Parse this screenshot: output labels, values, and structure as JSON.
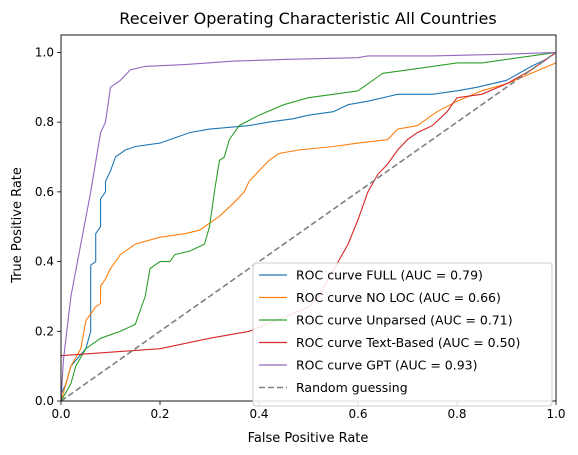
{
  "chart_data": {
    "type": "line",
    "title": "Receiver Operating Characteristic All Countries",
    "xlabel": "False Positive Rate",
    "ylabel": "True Positive Rate",
    "xlim": [
      0,
      1
    ],
    "ylim": [
      0,
      1.05
    ],
    "xticks": [
      0.0,
      0.2,
      0.4,
      0.6,
      0.8,
      1.0
    ],
    "xtick_labels": [
      "0.0",
      "0.2",
      "0.4",
      "0.6",
      "0.8",
      "1.0"
    ],
    "yticks": [
      0.0,
      0.2,
      0.4,
      0.6,
      0.8,
      1.0
    ],
    "ytick_labels": [
      "0.0",
      "0.2",
      "0.4",
      "0.6",
      "0.8",
      "1.0"
    ],
    "grid": false,
    "legend_position": "lower-right",
    "series": [
      {
        "name": "ROC curve FULL (AUC = 0.79)",
        "color": "#1f77b4",
        "style": "solid",
        "points": [
          [
            0,
            0
          ],
          [
            0,
            0.02
          ],
          [
            0.01,
            0.05
          ],
          [
            0.02,
            0.1
          ],
          [
            0.05,
            0.15
          ],
          [
            0.06,
            0.2
          ],
          [
            0.06,
            0.39
          ],
          [
            0.07,
            0.4
          ],
          [
            0.07,
            0.48
          ],
          [
            0.08,
            0.5
          ],
          [
            0.08,
            0.58
          ],
          [
            0.09,
            0.6
          ],
          [
            0.09,
            0.63
          ],
          [
            0.1,
            0.66
          ],
          [
            0.11,
            0.7
          ],
          [
            0.13,
            0.72
          ],
          [
            0.15,
            0.73
          ],
          [
            0.2,
            0.74
          ],
          [
            0.22,
            0.75
          ],
          [
            0.26,
            0.77
          ],
          [
            0.3,
            0.78
          ],
          [
            0.38,
            0.79
          ],
          [
            0.42,
            0.8
          ],
          [
            0.47,
            0.81
          ],
          [
            0.5,
            0.82
          ],
          [
            0.55,
            0.83
          ],
          [
            0.58,
            0.85
          ],
          [
            0.62,
            0.86
          ],
          [
            0.68,
            0.88
          ],
          [
            0.75,
            0.88
          ],
          [
            0.8,
            0.89
          ],
          [
            0.84,
            0.9
          ],
          [
            0.9,
            0.92
          ],
          [
            0.95,
            0.96
          ],
          [
            0.98,
            0.98
          ],
          [
            1,
            1
          ]
        ]
      },
      {
        "name": "ROC curve NO LOC (AUC = 0.66)",
        "color": "#ff7f0e",
        "style": "solid",
        "points": [
          [
            0,
            0
          ],
          [
            0.01,
            0.05
          ],
          [
            0.02,
            0.1
          ],
          [
            0.04,
            0.15
          ],
          [
            0.05,
            0.23
          ],
          [
            0.06,
            0.25
          ],
          [
            0.07,
            0.27
          ],
          [
            0.08,
            0.28
          ],
          [
            0.08,
            0.33
          ],
          [
            0.09,
            0.35
          ],
          [
            0.1,
            0.38
          ],
          [
            0.12,
            0.42
          ],
          [
            0.15,
            0.45
          ],
          [
            0.2,
            0.47
          ],
          [
            0.25,
            0.48
          ],
          [
            0.28,
            0.49
          ],
          [
            0.29,
            0.5
          ],
          [
            0.3,
            0.51
          ],
          [
            0.32,
            0.53
          ],
          [
            0.35,
            0.57
          ],
          [
            0.37,
            0.6
          ],
          [
            0.38,
            0.63
          ],
          [
            0.4,
            0.66
          ],
          [
            0.42,
            0.69
          ],
          [
            0.44,
            0.71
          ],
          [
            0.48,
            0.72
          ],
          [
            0.55,
            0.73
          ],
          [
            0.6,
            0.74
          ],
          [
            0.66,
            0.75
          ],
          [
            0.68,
            0.78
          ],
          [
            0.72,
            0.79
          ],
          [
            0.76,
            0.83
          ],
          [
            0.8,
            0.86
          ],
          [
            0.85,
            0.89
          ],
          [
            0.9,
            0.91
          ],
          [
            0.95,
            0.94
          ],
          [
            1,
            0.97
          ]
        ]
      },
      {
        "name": "ROC curve Unparsed (AUC = 0.71)",
        "color": "#2ca02c",
        "style": "solid",
        "points": [
          [
            0,
            0
          ],
          [
            0.02,
            0.05
          ],
          [
            0.03,
            0.1
          ],
          [
            0.05,
            0.15
          ],
          [
            0.08,
            0.18
          ],
          [
            0.12,
            0.2
          ],
          [
            0.15,
            0.22
          ],
          [
            0.17,
            0.3
          ],
          [
            0.18,
            0.38
          ],
          [
            0.2,
            0.4
          ],
          [
            0.22,
            0.4
          ],
          [
            0.23,
            0.42
          ],
          [
            0.26,
            0.43
          ],
          [
            0.29,
            0.45
          ],
          [
            0.3,
            0.5
          ],
          [
            0.31,
            0.6
          ],
          [
            0.32,
            0.69
          ],
          [
            0.33,
            0.7
          ],
          [
            0.34,
            0.75
          ],
          [
            0.36,
            0.79
          ],
          [
            0.4,
            0.82
          ],
          [
            0.45,
            0.85
          ],
          [
            0.5,
            0.87
          ],
          [
            0.55,
            0.88
          ],
          [
            0.6,
            0.89
          ],
          [
            0.65,
            0.94
          ],
          [
            0.7,
            0.95
          ],
          [
            0.75,
            0.96
          ],
          [
            0.8,
            0.97
          ],
          [
            0.85,
            0.97
          ],
          [
            0.9,
            0.98
          ],
          [
            0.95,
            0.99
          ],
          [
            1,
            1
          ]
        ]
      },
      {
        "name": "ROC curve Text-Based (AUC = 0.50)",
        "color": "#d62728",
        "style": "solid",
        "points": [
          [
            0,
            0.13
          ],
          [
            0.1,
            0.14
          ],
          [
            0.2,
            0.15
          ],
          [
            0.3,
            0.18
          ],
          [
            0.38,
            0.2
          ],
          [
            0.45,
            0.24
          ],
          [
            0.5,
            0.27
          ],
          [
            0.52,
            0.3
          ],
          [
            0.54,
            0.35
          ],
          [
            0.56,
            0.4
          ],
          [
            0.58,
            0.45
          ],
          [
            0.6,
            0.52
          ],
          [
            0.62,
            0.6
          ],
          [
            0.64,
            0.65
          ],
          [
            0.66,
            0.68
          ],
          [
            0.68,
            0.72
          ],
          [
            0.7,
            0.75
          ],
          [
            0.72,
            0.77
          ],
          [
            0.75,
            0.79
          ],
          [
            0.78,
            0.83
          ],
          [
            0.8,
            0.87
          ],
          [
            0.85,
            0.88
          ],
          [
            0.9,
            0.91
          ],
          [
            0.95,
            0.95
          ],
          [
            1,
            1
          ]
        ]
      },
      {
        "name": "ROC curve GPT (AUC = 0.93)",
        "color": "#9467bd",
        "style": "solid",
        "points": [
          [
            0,
            0
          ],
          [
            0.005,
            0.12
          ],
          [
            0.02,
            0.3
          ],
          [
            0.04,
            0.45
          ],
          [
            0.06,
            0.6
          ],
          [
            0.08,
            0.77
          ],
          [
            0.09,
            0.8
          ],
          [
            0.1,
            0.9
          ],
          [
            0.12,
            0.92
          ],
          [
            0.14,
            0.95
          ],
          [
            0.17,
            0.96
          ],
          [
            0.25,
            0.965
          ],
          [
            0.35,
            0.975
          ],
          [
            0.45,
            0.98
          ],
          [
            0.6,
            0.985
          ],
          [
            0.62,
            0.99
          ],
          [
            0.75,
            0.99
          ],
          [
            0.9,
            0.995
          ],
          [
            1,
            1
          ]
        ]
      },
      {
        "name": "Random guessing",
        "color": "#808080",
        "style": "dashed",
        "points": [
          [
            0,
            0
          ],
          [
            1,
            1
          ]
        ]
      }
    ]
  }
}
